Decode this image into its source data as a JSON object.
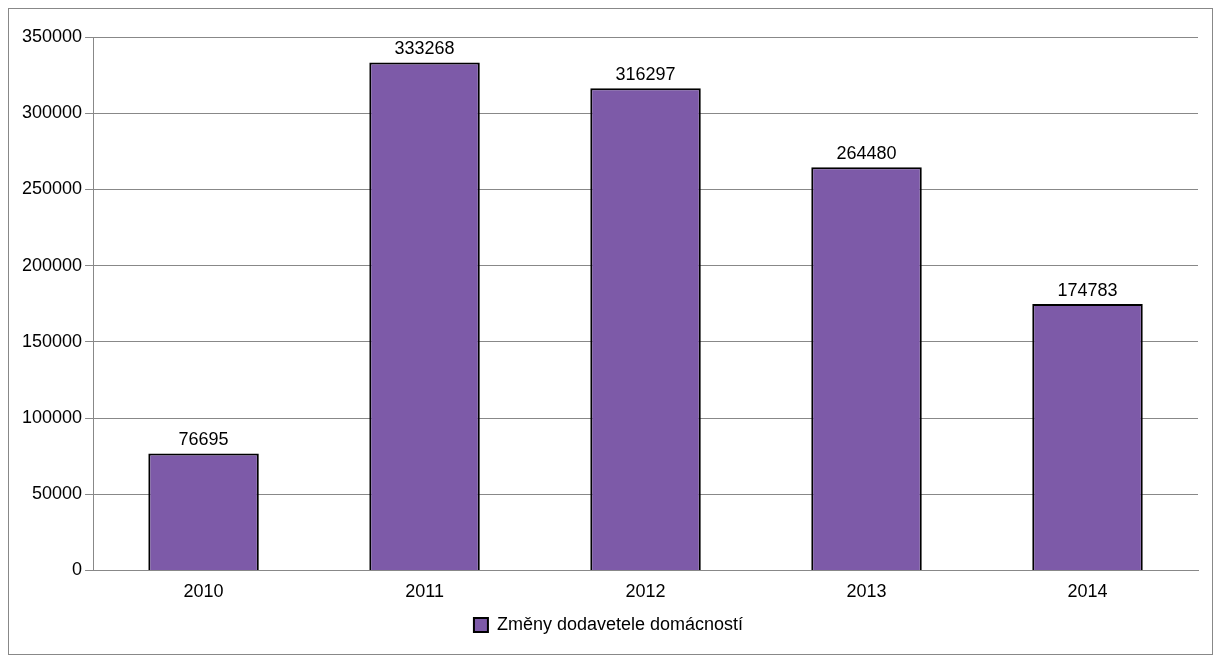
{
  "chart_data": {
    "type": "bar",
    "categories": [
      "2010",
      "2011",
      "2012",
      "2013",
      "2014"
    ],
    "series": [
      {
        "name": "Změny dodavetele domácností",
        "color": "#7d5aa8",
        "values": [
          76695,
          333268,
          316297,
          264480,
          174783
        ]
      }
    ],
    "ylim": [
      0,
      350000
    ],
    "yticks": [
      0,
      50000,
      100000,
      150000,
      200000,
      250000,
      300000,
      350000
    ],
    "grid": "y",
    "legend": "bottom",
    "data_labels": true
  }
}
